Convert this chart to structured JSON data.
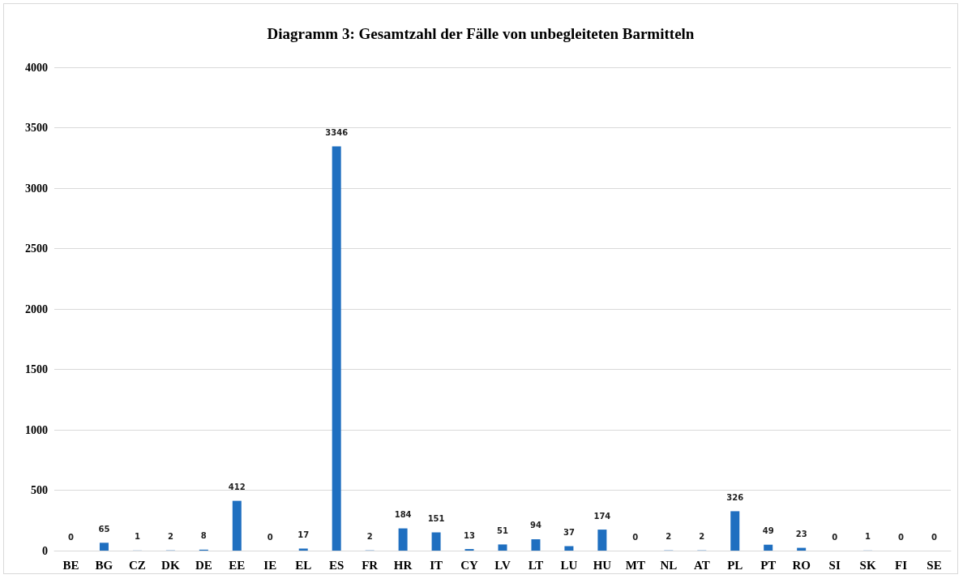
{
  "chart_data": {
    "type": "bar",
    "title": "Diagramm 3: Gesamtzahl der Fälle von unbegleiteten Barmitteln",
    "categories": [
      "BE",
      "BG",
      "CZ",
      "DK",
      "DE",
      "EE",
      "IE",
      "EL",
      "ES",
      "FR",
      "HR",
      "IT",
      "CY",
      "LV",
      "LT",
      "LU",
      "HU",
      "MT",
      "NL",
      "AT",
      "PL",
      "PT",
      "RO",
      "SI",
      "SK",
      "FI",
      "SE"
    ],
    "values": [
      0,
      65,
      1,
      2,
      8,
      412,
      0,
      17,
      3346,
      2,
      184,
      151,
      13,
      51,
      94,
      37,
      174,
      0,
      2,
      2,
      326,
      49,
      23,
      0,
      1,
      0,
      0
    ],
    "color": "#1f6fc0",
    "ylim": [
      0,
      4000
    ],
    "yticks": [
      0,
      500,
      1000,
      1500,
      2000,
      2500,
      3000,
      3500,
      4000
    ],
    "grid": "y",
    "data_labels": true
  }
}
